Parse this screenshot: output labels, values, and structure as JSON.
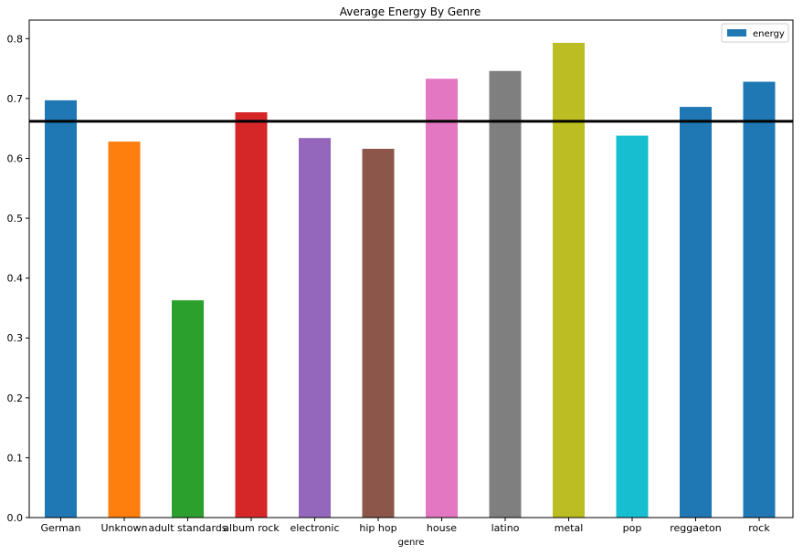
{
  "chart_data": {
    "type": "bar",
    "title": "Average Energy By Genre",
    "xlabel": "genre",
    "ylabel": "",
    "categories": [
      "German",
      "Unknown",
      "adult standards",
      "album rock",
      "electronic",
      "hip hop",
      "house",
      "latino",
      "metal",
      "pop",
      "reggaeton",
      "rock"
    ],
    "series": [
      {
        "name": "energy",
        "values": [
          0.697,
          0.628,
          0.363,
          0.677,
          0.634,
          0.616,
          0.733,
          0.746,
          0.793,
          0.638,
          0.686,
          0.728
        ]
      }
    ],
    "bar_colors": [
      "#1f77b4",
      "#ff7f0e",
      "#2ca02c",
      "#d62728",
      "#9467bd",
      "#8c564b",
      "#e377c2",
      "#7f7f7f",
      "#bcbd22",
      "#17becf",
      "#1f77b4",
      "#1f77b4"
    ],
    "legend_color": "#1f77b4",
    "reference_line": {
      "y": 0.662,
      "color": "#000000"
    },
    "ylim": [
      0,
      0.831
    ],
    "yticks": [
      0.0,
      0.1,
      0.2,
      0.3,
      0.4,
      0.5,
      0.6,
      0.7,
      0.8
    ],
    "ytick_labels": [
      "0.0",
      "0.1",
      "0.2",
      "0.3",
      "0.4",
      "0.5",
      "0.6",
      "0.7",
      "0.8"
    ],
    "grid": false,
    "legend_position": "top-right"
  }
}
